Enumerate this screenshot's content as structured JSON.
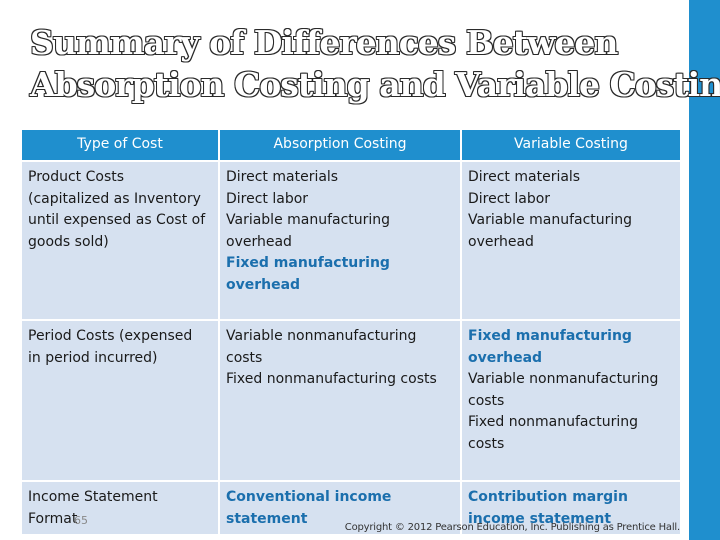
{
  "title": {
    "line1": "Summary of Differences Between",
    "line2": "Absorption Costing and Variable Costing"
  },
  "table": {
    "headers": [
      "Type of Cost",
      "Absorption Costing",
      "Variable Costing"
    ],
    "rows": [
      {
        "type": [
          "Product Costs",
          "(capitalized as Inventory",
          "until expensed as Cost of",
          "goods sold)"
        ],
        "absorption": [
          "Direct materials",
          "Direct labor",
          "Variable manufacturing",
          "overhead"
        ],
        "absorption_highlight": [
          "Fixed manufacturing",
          "overhead"
        ],
        "variable": [
          "Direct materials",
          "Direct labor",
          "Variable manufacturing",
          "overhead"
        ]
      },
      {
        "type": [
          "Period Costs (expensed",
          "in period incurred)"
        ],
        "absorption": [
          "Variable nonmanufacturing",
          "costs",
          "Fixed nonmanufacturing costs"
        ],
        "variable_highlight": [
          "Fixed manufacturing",
          "overhead"
        ],
        "variable": [
          "Variable nonmanufacturing",
          "costs",
          "Fixed nonmanufacturing",
          "costs"
        ]
      },
      {
        "type": [
          "Income Statement",
          "Format"
        ],
        "absorption_highlight": [
          "Conventional income",
          "statement"
        ],
        "variable_highlight": [
          "Contribution margin",
          "income statement"
        ]
      }
    ]
  },
  "slide_number": "65",
  "copyright": "Copyright © 2012 Pearson Education, Inc. Publishing as Prentice Hall.",
  "colors": {
    "accent": "#1f8fce",
    "cell": "#d6e1f0",
    "highlight": "#1b6fad"
  }
}
